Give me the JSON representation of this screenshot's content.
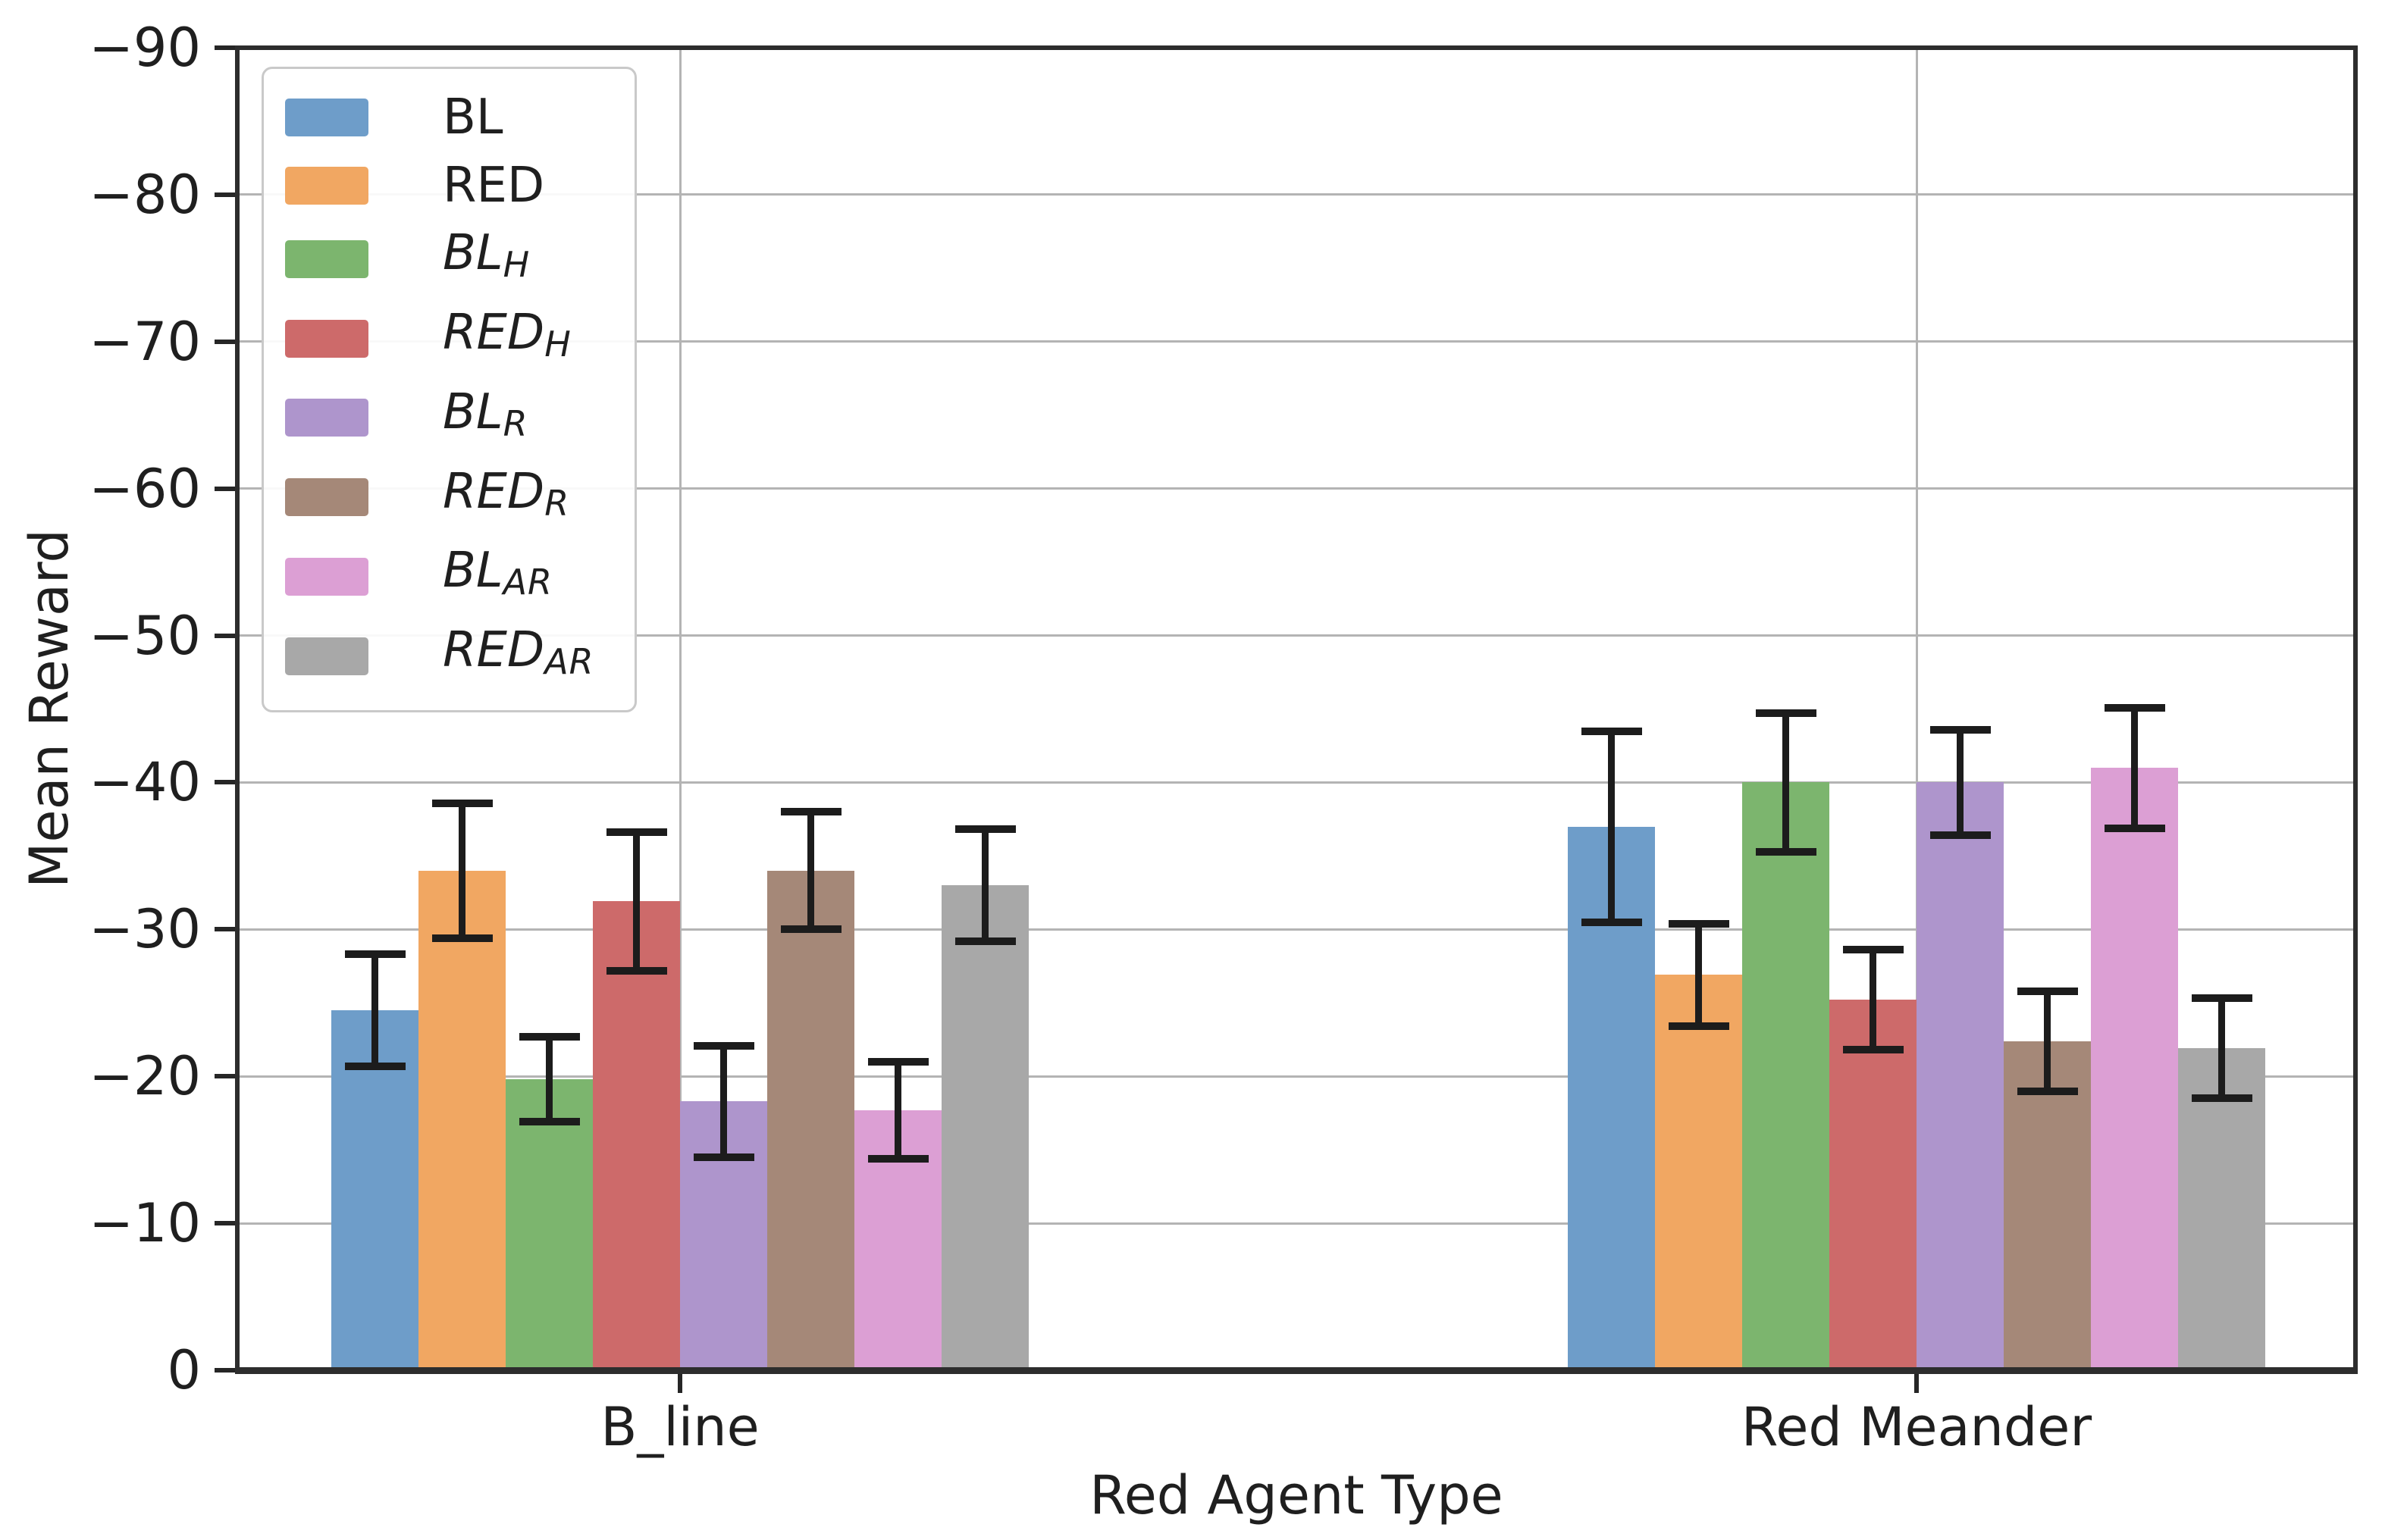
{
  "chart_data": {
    "type": "bar",
    "title": "",
    "xlabel": "Red Agent Type",
    "ylabel": "Mean Reward",
    "categories": [
      "B_line",
      "Red Meander"
    ],
    "y_axis": {
      "min": -90,
      "max": 0,
      "inverted": true,
      "tick_step": 10,
      "ticks": [
        -90,
        -80,
        -70,
        -60,
        -50,
        -40,
        -30,
        -20,
        -10,
        0
      ],
      "tick_labels": [
        "−90",
        "−80",
        "−70",
        "−60",
        "−50",
        "−40",
        "−30",
        "−20",
        "−10",
        "0"
      ]
    },
    "grid": true,
    "legend_position": "upper left",
    "series": [
      {
        "name": "BL",
        "legend_base": "BL",
        "legend_sub": "",
        "italic": false,
        "color": "#6E9DC9",
        "values": [
          -24.5,
          -37.0
        ],
        "errors": [
          3.8,
          6.5
        ]
      },
      {
        "name": "RED",
        "legend_base": "RED",
        "legend_sub": "",
        "italic": false,
        "color": "#F1A762",
        "values": [
          -34.0,
          -26.9
        ],
        "errors": [
          4.6,
          3.5
        ]
      },
      {
        "name": "BL_H",
        "legend_base": "BL",
        "legend_sub": "H",
        "italic": true,
        "color": "#7CB56E",
        "values": [
          -19.8,
          -40.0
        ],
        "errors": [
          2.9,
          4.7
        ]
      },
      {
        "name": "RED_H",
        "legend_base": "RED",
        "legend_sub": "H",
        "italic": true,
        "color": "#CD6A6A",
        "values": [
          -31.9,
          -25.2
        ],
        "errors": [
          4.7,
          3.4
        ]
      },
      {
        "name": "BL_R",
        "legend_base": "BL",
        "legend_sub": "R",
        "italic": true,
        "color": "#AE95CC",
        "values": [
          -18.3,
          -40.0
        ],
        "errors": [
          3.8,
          3.6
        ]
      },
      {
        "name": "RED_R",
        "legend_base": "RED",
        "legend_sub": "R",
        "italic": true,
        "color": "#A58878",
        "values": [
          -34.0,
          -22.4
        ],
        "errors": [
          4.0,
          3.4
        ]
      },
      {
        "name": "BL_AR",
        "legend_base": "BL",
        "legend_sub": "AR",
        "italic": true,
        "color": "#DC9FD4",
        "values": [
          -17.7,
          -41.0
        ],
        "errors": [
          3.3,
          4.1
        ]
      },
      {
        "name": "RED_AR",
        "legend_base": "RED",
        "legend_sub": "AR",
        "italic": true,
        "color": "#A8A8A8",
        "values": [
          -33.0,
          -21.9
        ],
        "errors": [
          3.8,
          3.4
        ]
      }
    ],
    "colors": {
      "grid": "#b4b4b4",
      "spine": "#2d2d2d",
      "error_bar": "#1c1c1c",
      "text": "#1f1f1f",
      "legend_border": "#c9c9c9",
      "background": "#ffffff"
    }
  }
}
